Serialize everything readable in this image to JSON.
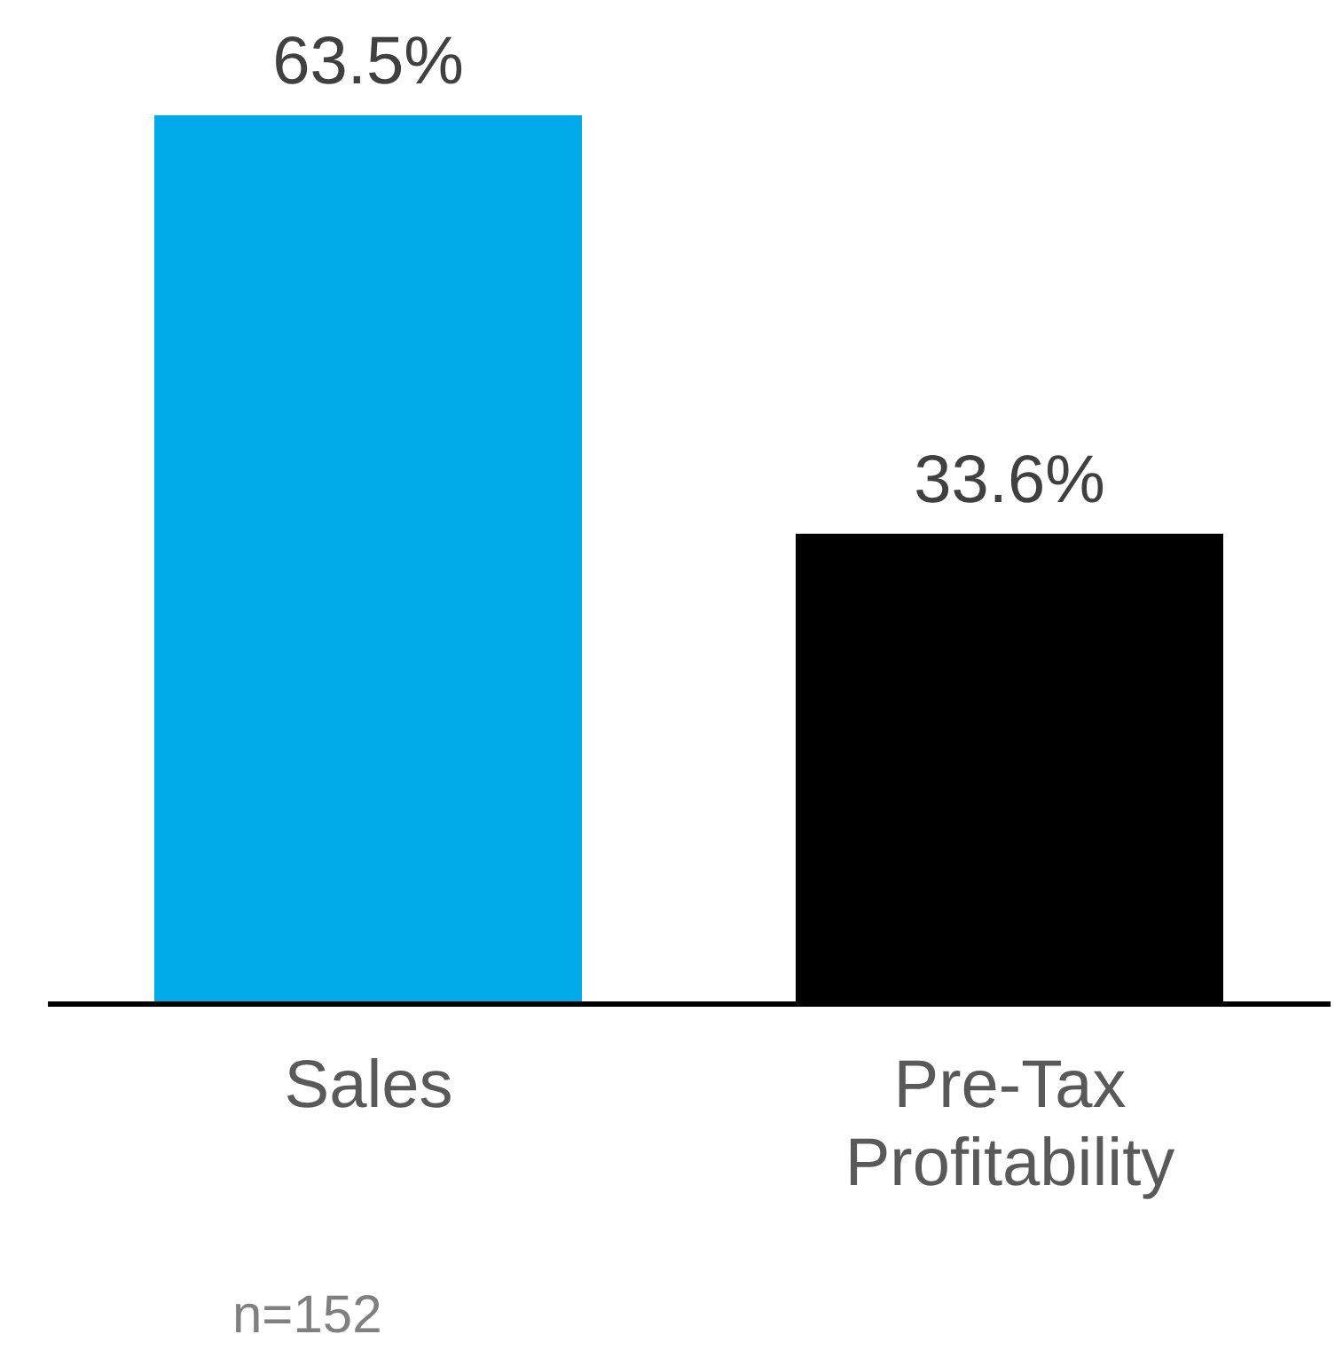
{
  "chart_data": {
    "type": "bar",
    "categories": [
      "Sales",
      "Pre-Tax Profitability"
    ],
    "values": [
      63.5,
      33.6
    ],
    "colors": [
      "#00a9e8",
      "#000000"
    ],
    "value_labels": [
      "63.5%",
      "33.6%"
    ],
    "annotations": [
      "n=152"
    ]
  }
}
